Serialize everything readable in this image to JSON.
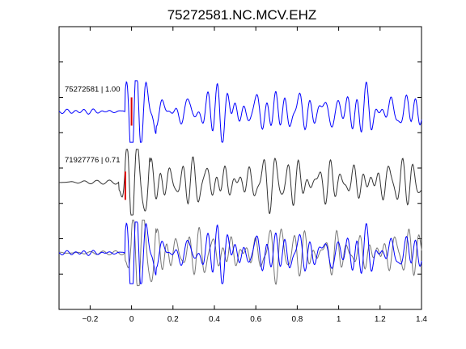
{
  "chart_data": {
    "type": "line",
    "title": "75272581.NC.MCV.EHZ",
    "xlabel": "",
    "ylabel": "",
    "xlim": [
      -0.35,
      1.4
    ],
    "ylim": [
      0,
      4
    ],
    "x_ticks": [
      -0.2,
      0,
      0.2,
      0.4,
      0.6,
      0.8,
      1,
      1.2,
      1.4
    ],
    "x_tick_labels": [
      "−0.2",
      "0",
      "0.2",
      "0.4",
      "0.6",
      "0.8",
      "1",
      "1.2",
      "1.4"
    ],
    "y_ticks": [
      0.5,
      1.0,
      1.5,
      2.0,
      2.5,
      3.0,
      3.5
    ],
    "grid": false,
    "legend": "none",
    "colors": {
      "primary": "#0000ff",
      "secondary": "#333333",
      "overlay": "#777777",
      "pick": "#dd0000"
    },
    "traces": [
      {
        "label": "75272581 | 1.00",
        "role": "primary",
        "offset": 2.8,
        "amplitude": 0.3,
        "pick_time": 0.0,
        "pick_range": [
          2.6,
          3.0
        ]
      },
      {
        "label": "71927776 | 0.71",
        "role": "secondary",
        "offset": 1.8,
        "amplitude": 0.32,
        "pick_time": -0.03,
        "pick_range": [
          1.55,
          1.95
        ]
      },
      {
        "label": "",
        "role": "overlay",
        "offset": 0.8,
        "amplitude": 0.32
      }
    ]
  }
}
